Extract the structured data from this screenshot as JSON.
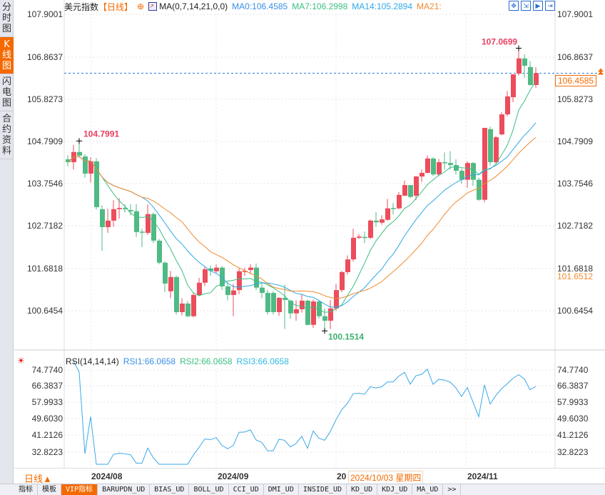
{
  "sidebar": {
    "tabs": [
      {
        "label": "分时图",
        "active": false
      },
      {
        "label": "K线图",
        "active": true
      },
      {
        "label": "闪电图",
        "active": false
      },
      {
        "label": "合约资料",
        "active": false
      }
    ]
  },
  "header": {
    "symbol": "美元指数",
    "period": "【日线】",
    "ma_params": "MA(0,7,14,21,0,0)",
    "ma0": "MA0:106.4585",
    "ma7": "MA7:106.2998",
    "ma14": "MA14:105.2894",
    "ma21": "MA21:"
  },
  "tools": [
    "crosshair-icon",
    "zoom-in-icon",
    "zoom-out-icon",
    "end-icon"
  ],
  "colors": {
    "up": "#ec4c5c",
    "down": "#4fba84",
    "ma7": "#3cbf80",
    "ma14": "#2fa8e6",
    "ma21": "#f08a30",
    "rsi": "#3aa8e8",
    "accent": "#f56a00"
  },
  "price_axis": [
    "107.9001",
    "106.8637",
    "105.8273",
    "104.7909",
    "103.7546",
    "102.7182",
    "101.6818",
    "100.6454"
  ],
  "current_price": "106.4585",
  "ma21_label": "101.6512",
  "annotations": {
    "high1": "104.7991",
    "low": "100.1514",
    "high2": "107.0699"
  },
  "rsi": {
    "title": "RSI(14,14,14)",
    "rsi1": "RSI1:66.0658",
    "rsi2": "RSI2:66.0658",
    "rsi3": "RSI3:66.0658",
    "axis": [
      "74.7740",
      "66.3837",
      "57.9933",
      "49.6030",
      "41.2126",
      "32.8223"
    ]
  },
  "time_axis": {
    "period_button": "日线▲",
    "labels": [
      "2024/08",
      "2024/09",
      "20",
      "2024/11"
    ],
    "cursor_date": "2024/10/03 星期四"
  },
  "bottom_tabs": [
    "指标",
    "模板",
    "VIP指标",
    "BARUPDN_UD",
    "BIAS_UD",
    "BOLL_UD",
    "CCI_UD",
    "DMI_UD",
    "INSIDE_UD",
    "KD_UD",
    "KDJ_UD",
    "MA_UD",
    ">>"
  ],
  "chart_data": {
    "type": "candlestick",
    "title": "美元指数 日线",
    "ylim": [
      100.0,
      107.9001
    ],
    "ohlc": [
      [
        104.35,
        104.45,
        104.18,
        104.28
      ],
      [
        104.28,
        104.7,
        104.1,
        104.53
      ],
      [
        104.53,
        104.8,
        104.4,
        104.44
      ],
      [
        104.42,
        104.48,
        103.9,
        104.0
      ],
      [
        104.0,
        104.4,
        103.78,
        104.3
      ],
      [
        104.3,
        104.38,
        103.12,
        103.18
      ],
      [
        103.13,
        103.22,
        102.11,
        102.69
      ],
      [
        102.69,
        103.14,
        102.55,
        102.85
      ],
      [
        102.85,
        103.35,
        102.7,
        103.13
      ],
      [
        103.13,
        103.4,
        102.9,
        103.16
      ],
      [
        103.16,
        103.25,
        103.05,
        103.13
      ],
      [
        103.11,
        103.25,
        102.98,
        103.08
      ],
      [
        103.08,
        103.25,
        102.45,
        102.57
      ],
      [
        102.58,
        102.65,
        102.2,
        102.57
      ],
      [
        102.55,
        103.25,
        102.5,
        103.01
      ],
      [
        103.01,
        103.05,
        102.3,
        102.36
      ],
      [
        102.36,
        102.4,
        101.78,
        101.82
      ],
      [
        101.82,
        101.85,
        101.1,
        101.31
      ],
      [
        101.12,
        101.62,
        100.95,
        101.47
      ],
      [
        101.47,
        101.5,
        100.55,
        100.61
      ],
      [
        100.61,
        100.95,
        100.53,
        100.82
      ],
      [
        100.82,
        100.88,
        100.48,
        100.51
      ],
      [
        100.51,
        101.1,
        100.48,
        101.03
      ],
      [
        101.03,
        101.45,
        101.0,
        101.33
      ],
      [
        101.33,
        101.72,
        101.25,
        101.66
      ],
      [
        101.68,
        101.75,
        101.5,
        101.62
      ],
      [
        101.61,
        101.78,
        101.55,
        101.7
      ],
      [
        101.7,
        101.74,
        101.15,
        101.24
      ],
      [
        101.24,
        101.35,
        100.9,
        101.03
      ],
      [
        101.03,
        101.3,
        100.51,
        101.14
      ],
      [
        101.15,
        101.68,
        101.05,
        101.61
      ],
      [
        101.61,
        101.7,
        101.5,
        101.62
      ],
      [
        101.64,
        101.78,
        101.55,
        101.7
      ],
      [
        101.7,
        101.8,
        101.15,
        101.21
      ],
      [
        101.21,
        101.3,
        100.95,
        101.08
      ],
      [
        101.08,
        101.15,
        100.55,
        100.61
      ],
      [
        101.08,
        101.12,
        100.55,
        100.61
      ],
      [
        100.61,
        100.98,
        100.52,
        100.96
      ],
      [
        100.96,
        101.28,
        100.2,
        100.91
      ],
      [
        100.89,
        100.92,
        100.45,
        100.58
      ],
      [
        100.58,
        100.9,
        100.4,
        100.68
      ],
      [
        100.68,
        101.05,
        100.6,
        100.89
      ],
      [
        100.89,
        100.92,
        100.28,
        100.3
      ],
      [
        100.3,
        100.92,
        100.22,
        100.87
      ],
      [
        100.87,
        100.9,
        100.45,
        100.51
      ],
      [
        100.51,
        100.7,
        100.15,
        100.4
      ],
      [
        100.4,
        100.9,
        100.2,
        100.7
      ],
      [
        100.7,
        101.3,
        100.65,
        101.15
      ],
      [
        101.15,
        101.62,
        101.1,
        101.59
      ],
      [
        101.59,
        102.0,
        101.53,
        101.9
      ],
      [
        101.9,
        102.65,
        101.85,
        102.43
      ],
      [
        102.43,
        102.52,
        102.4,
        102.46
      ],
      [
        102.45,
        102.58,
        102.3,
        102.43
      ],
      [
        102.43,
        102.88,
        102.4,
        102.85
      ],
      [
        102.85,
        103.06,
        102.7,
        102.81
      ],
      [
        102.8,
        102.98,
        102.75,
        102.88
      ],
      [
        102.87,
        103.38,
        102.85,
        103.15
      ],
      [
        103.16,
        103.28,
        103.0,
        103.15
      ],
      [
        103.15,
        103.55,
        103.13,
        103.48
      ],
      [
        103.46,
        103.83,
        103.45,
        103.72
      ],
      [
        103.72,
        103.72,
        103.4,
        103.43
      ],
      [
        103.46,
        103.95,
        103.35,
        103.93
      ],
      [
        103.93,
        104.1,
        103.8,
        104.02
      ],
      [
        104.02,
        104.45,
        104.0,
        104.37
      ],
      [
        104.37,
        104.4,
        103.95,
        103.98
      ],
      [
        103.98,
        104.36,
        103.94,
        104.28
      ],
      [
        104.28,
        104.52,
        104.1,
        104.26
      ],
      [
        104.26,
        104.55,
        104.1,
        104.21
      ],
      [
        104.21,
        104.35,
        103.98,
        104.07
      ],
      [
        104.07,
        104.12,
        103.75,
        103.85
      ],
      [
        103.85,
        104.3,
        103.65,
        104.26
      ],
      [
        104.26,
        104.28,
        103.7,
        103.85
      ],
      [
        103.85,
        103.9,
        103.33,
        103.36
      ],
      [
        103.36,
        105.12,
        103.3,
        105.12
      ],
      [
        105.09,
        105.15,
        104.2,
        104.28
      ],
      [
        104.28,
        104.92,
        104.25,
        104.89
      ],
      [
        104.96,
        105.5,
        104.94,
        105.45
      ],
      [
        105.45,
        106.02,
        105.4,
        105.89
      ],
      [
        105.87,
        106.43,
        105.75,
        106.43
      ],
      [
        106.45,
        107.07,
        106.4,
        106.82
      ],
      [
        106.82,
        106.92,
        106.35,
        106.64
      ],
      [
        106.61,
        106.75,
        106.15,
        106.17
      ],
      [
        106.17,
        106.6,
        106.1,
        106.46
      ]
    ],
    "ma_periods": [
      7,
      14,
      21
    ],
    "rsi_period": 14,
    "rsi_ylim": [
      20,
      80
    ]
  }
}
